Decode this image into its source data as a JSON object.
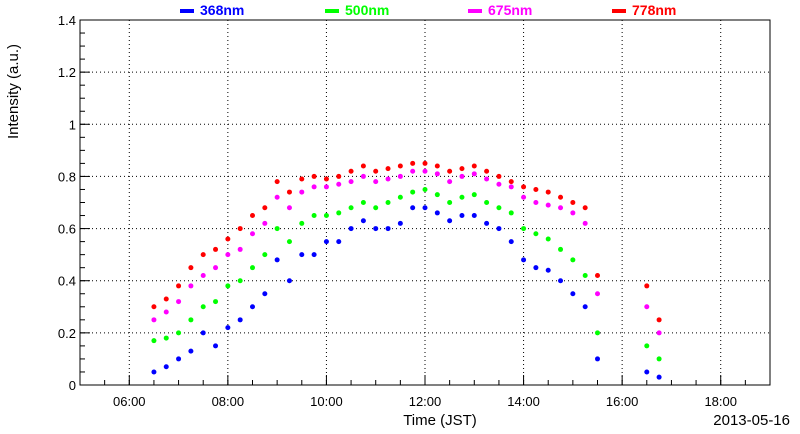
{
  "chart_data": {
    "type": "scatter",
    "title": "",
    "xlabel": "Time (JST)",
    "ylabel": "Intensity (a.u.)",
    "date_label": "2013-05-16",
    "xlim": [
      5.0,
      19.0
    ],
    "ylim": [
      0,
      1.4
    ],
    "grid": true,
    "legend_placement": "top",
    "x_ticks": [
      {
        "value": 6,
        "label": "06:00"
      },
      {
        "value": 8,
        "label": "08:00"
      },
      {
        "value": 10,
        "label": "10:00"
      },
      {
        "value": 12,
        "label": "12:00"
      },
      {
        "value": 14,
        "label": "14:00"
      },
      {
        "value": 16,
        "label": "16:00"
      },
      {
        "value": 18,
        "label": "18:00"
      }
    ],
    "y_ticks": [
      {
        "value": 0,
        "label": "0"
      },
      {
        "value": 0.2,
        "label": "0.2"
      },
      {
        "value": 0.4,
        "label": "0.4"
      },
      {
        "value": 0.6,
        "label": "0.6"
      },
      {
        "value": 0.8,
        "label": "0.8"
      },
      {
        "value": 1.0,
        "label": "1"
      },
      {
        "value": 1.2,
        "label": "1.2"
      },
      {
        "value": 1.4,
        "label": "1.4"
      }
    ],
    "series": [
      {
        "name": "368nm",
        "color": "#0000ff",
        "x": [
          6.5,
          6.75,
          7.0,
          7.25,
          7.5,
          7.75,
          8.0,
          8.25,
          8.5,
          8.75,
          9.0,
          9.25,
          9.5,
          9.75,
          10.0,
          10.25,
          10.5,
          10.75,
          11.0,
          11.25,
          11.5,
          11.75,
          12.0,
          12.25,
          12.5,
          12.75,
          13.0,
          13.25,
          13.5,
          13.75,
          14.0,
          14.25,
          14.5,
          14.75,
          15.0,
          15.25,
          15.5,
          16.5,
          16.75
        ],
        "y": [
          0.05,
          0.07,
          0.1,
          0.13,
          0.2,
          0.15,
          0.22,
          0.25,
          0.3,
          0.35,
          0.48,
          0.4,
          0.5,
          0.5,
          0.55,
          0.55,
          0.6,
          0.63,
          0.6,
          0.6,
          0.62,
          0.68,
          0.68,
          0.66,
          0.63,
          0.65,
          0.65,
          0.62,
          0.6,
          0.55,
          0.48,
          0.45,
          0.44,
          0.4,
          0.35,
          0.3,
          0.1,
          0.05,
          0.03
        ]
      },
      {
        "name": "500nm",
        "color": "#00ff00",
        "x": [
          6.5,
          6.75,
          7.0,
          7.25,
          7.5,
          7.75,
          8.0,
          8.25,
          8.5,
          8.75,
          9.0,
          9.25,
          9.5,
          9.75,
          10.0,
          10.25,
          10.5,
          10.75,
          11.0,
          11.25,
          11.5,
          11.75,
          12.0,
          12.25,
          12.5,
          12.75,
          13.0,
          13.25,
          13.5,
          13.75,
          14.0,
          14.25,
          14.5,
          14.75,
          15.0,
          15.25,
          15.5,
          16.5,
          16.75
        ],
        "y": [
          0.17,
          0.18,
          0.2,
          0.25,
          0.3,
          0.32,
          0.38,
          0.4,
          0.45,
          0.5,
          0.6,
          0.55,
          0.62,
          0.65,
          0.65,
          0.66,
          0.68,
          0.7,
          0.68,
          0.7,
          0.72,
          0.74,
          0.75,
          0.73,
          0.7,
          0.72,
          0.73,
          0.7,
          0.68,
          0.66,
          0.6,
          0.58,
          0.56,
          0.52,
          0.48,
          0.42,
          0.2,
          0.15,
          0.1
        ]
      },
      {
        "name": "675nm",
        "color": "#ff00ff",
        "x": [
          6.5,
          6.75,
          7.0,
          7.25,
          7.5,
          7.75,
          8.0,
          8.25,
          8.5,
          8.75,
          9.0,
          9.25,
          9.5,
          9.75,
          10.0,
          10.25,
          10.5,
          10.75,
          11.0,
          11.25,
          11.5,
          11.75,
          12.0,
          12.25,
          12.5,
          12.75,
          13.0,
          13.25,
          13.5,
          13.75,
          14.0,
          14.25,
          14.5,
          14.75,
          15.0,
          15.25,
          15.5,
          16.5,
          16.75
        ],
        "y": [
          0.25,
          0.28,
          0.32,
          0.38,
          0.42,
          0.45,
          0.5,
          0.52,
          0.58,
          0.62,
          0.72,
          0.68,
          0.74,
          0.76,
          0.76,
          0.77,
          0.78,
          0.8,
          0.78,
          0.79,
          0.8,
          0.82,
          0.82,
          0.81,
          0.78,
          0.8,
          0.81,
          0.79,
          0.77,
          0.76,
          0.72,
          0.7,
          0.69,
          0.68,
          0.66,
          0.62,
          0.35,
          0.3,
          0.2
        ]
      },
      {
        "name": "778nm",
        "color": "#ff0000",
        "x": [
          6.5,
          6.75,
          7.0,
          7.25,
          7.5,
          7.75,
          8.0,
          8.25,
          8.5,
          8.75,
          9.0,
          9.25,
          9.5,
          9.75,
          10.0,
          10.25,
          10.5,
          10.75,
          11.0,
          11.25,
          11.5,
          11.75,
          12.0,
          12.25,
          12.5,
          12.75,
          13.0,
          13.25,
          13.5,
          13.75,
          14.0,
          14.25,
          14.5,
          14.75,
          15.0,
          15.25,
          15.5,
          16.5,
          16.75
        ],
        "y": [
          0.3,
          0.33,
          0.38,
          0.45,
          0.5,
          0.52,
          0.56,
          0.6,
          0.65,
          0.68,
          0.78,
          0.74,
          0.79,
          0.8,
          0.79,
          0.8,
          0.82,
          0.84,
          0.82,
          0.83,
          0.84,
          0.85,
          0.85,
          0.84,
          0.82,
          0.83,
          0.84,
          0.82,
          0.8,
          0.78,
          0.76,
          0.75,
          0.74,
          0.72,
          0.7,
          0.68,
          0.42,
          0.38,
          0.25
        ]
      }
    ]
  }
}
